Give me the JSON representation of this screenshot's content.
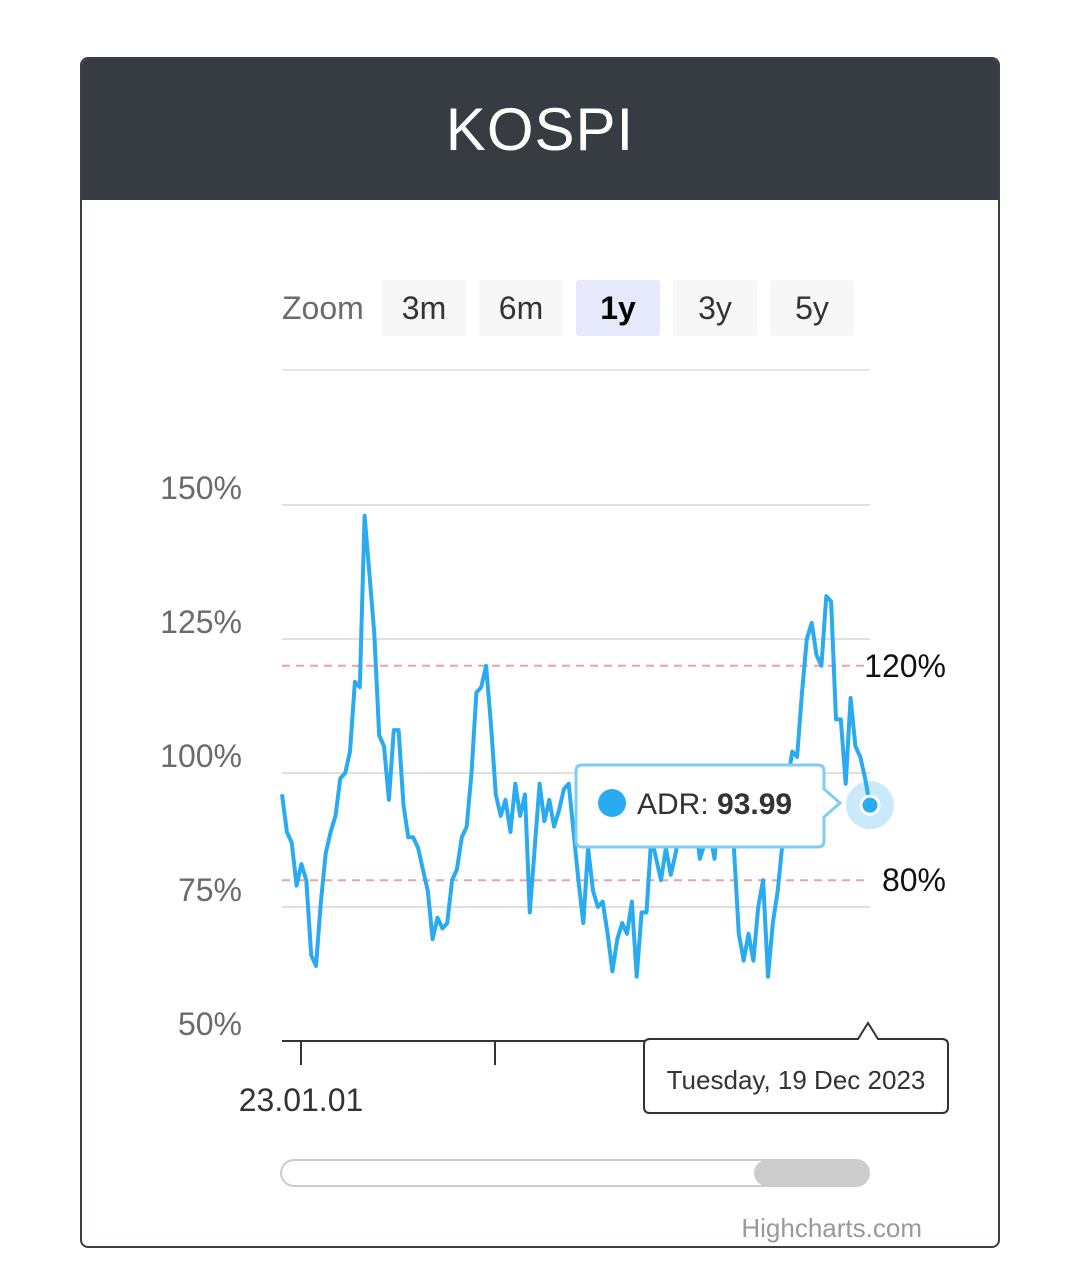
{
  "header": {
    "title": "KOSPI"
  },
  "zoom": {
    "label": "Zoom",
    "buttons": [
      "3m",
      "6m",
      "1y",
      "3y",
      "5y"
    ],
    "selected": "1y"
  },
  "colors": {
    "header_bg": "#373c42",
    "series": "#2aaaf0",
    "threshold": "#f0a0a0",
    "selected_zoom_bg": "#e6e9fb",
    "zoom_bg": "#f7f7f7"
  },
  "tooltip": {
    "series_label": "ADR: ",
    "value": "93.99",
    "date": "Tuesday, 19 Dec 2023"
  },
  "credits": "Highcharts.com",
  "chart_data": {
    "type": "line",
    "ylim": [
      50,
      150
    ],
    "yticks": [
      50,
      75,
      100,
      125,
      150
    ],
    "ytick_labels": [
      "50%",
      "75%",
      "100%",
      "125%",
      "150%"
    ],
    "x_label_visible": "23.01.01",
    "plot_lines": [
      {
        "value": 120,
        "label": "120%"
      },
      {
        "value": 80,
        "label": "80%"
      }
    ],
    "series": [
      {
        "name": "ADR",
        "values": [
          96,
          89,
          87,
          79,
          83,
          80,
          66,
          64,
          76,
          85,
          89,
          92,
          99,
          100,
          104,
          117,
          116,
          148,
          137,
          126,
          107,
          105,
          95,
          108,
          108,
          94,
          88,
          88,
          86,
          82,
          78,
          69,
          73,
          71,
          72,
          80,
          82,
          88,
          90,
          100,
          115,
          116,
          120,
          109,
          96,
          92,
          95,
          89,
          98,
          92,
          96,
          74,
          86,
          98,
          91,
          95,
          90,
          93,
          97,
          98,
          89,
          80,
          72,
          86,
          78,
          75,
          76,
          70,
          63,
          69,
          72,
          70,
          76,
          62,
          74,
          74,
          88,
          84,
          80,
          86,
          81,
          85,
          90,
          87,
          93,
          91,
          84,
          87,
          89,
          84,
          95,
          91,
          93,
          86,
          70,
          65,
          70,
          65,
          75,
          80,
          62,
          72,
          78,
          87,
          98,
          104,
          103,
          115,
          125,
          128,
          122,
          120,
          133,
          132,
          110,
          110,
          98,
          114,
          105,
          103,
          99,
          94
        ]
      }
    ]
  }
}
